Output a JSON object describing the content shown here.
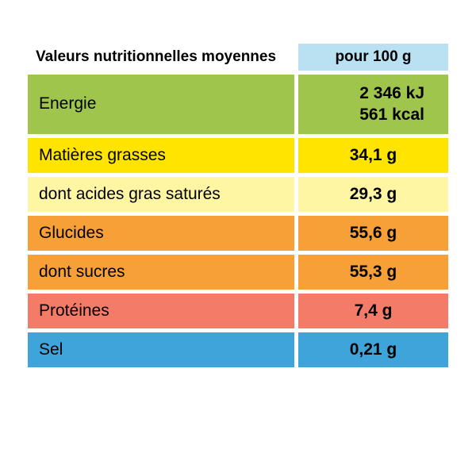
{
  "header": {
    "title": "Valeurs nutritionnelles moyennes",
    "per": "pour 100 g",
    "per_bg": "#b9e1f2"
  },
  "rows": [
    {
      "label": "Energie",
      "value": "2 346  kJ\n561 kcal",
      "bg": "#9fc54d",
      "multiline": true
    },
    {
      "label": "Matières grasses",
      "value": "34,1 g",
      "bg": "#ffe400"
    },
    {
      "label": "dont acides gras saturés",
      "value": "29,3 g",
      "bg": "#fff6a3"
    },
    {
      "label": "Glucides",
      "value": "55,6 g",
      "bg": "#f6a037"
    },
    {
      "label": "dont sucres",
      "value": "55,3 g",
      "bg": "#f6a037"
    },
    {
      "label": "Protéines",
      "value": "7,4 g",
      "bg": "#f37b68"
    },
    {
      "label": "Sel",
      "value": "0,21 g",
      "bg": "#3fa4d9"
    }
  ]
}
